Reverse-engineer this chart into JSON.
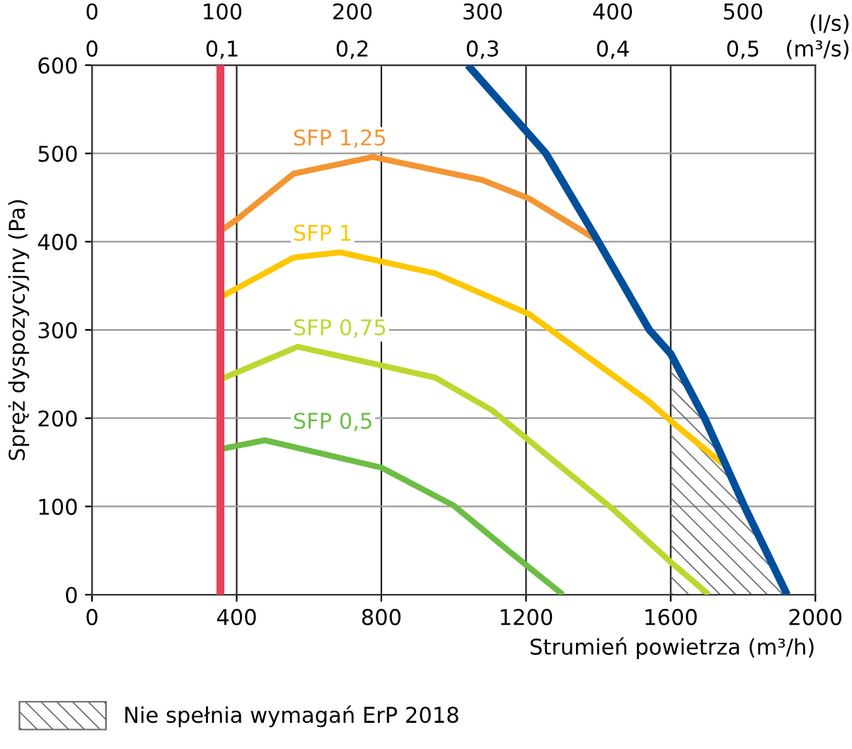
{
  "chart_data": {
    "type": "line",
    "xlabel": "Strumień powietrza (m³/h)",
    "ylabel": "Spręż dyspozycyjny (Pa)",
    "x2label": "(l/s)",
    "annotations": [
      "0",
      "0,1",
      "0,2",
      "0,3",
      "0,4",
      "0,5",
      "(m³/s)"
    ],
    "xlim": [
      0,
      2000
    ],
    "xticks": [
      0,
      400,
      800,
      1200,
      1600,
      2000
    ],
    "ylim": [
      0,
      600
    ],
    "yticks": [
      0,
      100,
      200,
      300,
      400,
      500,
      600
    ],
    "x2lim": [
      0,
      555.6
    ],
    "x2ticks": [
      0,
      100,
      200,
      300,
      400,
      500
    ],
    "grid": true,
    "legend": "bottom left",
    "line_style": "solid",
    "marker": "none",
    "ref_lines": [
      {
        "axis": "x",
        "value": 355,
        "color": "#e8415a"
      }
    ],
    "series": [
      {
        "type": "area",
        "name": "Nie spełnia wymagań ErP 2018",
        "color": "#666666",
        "x": [
          1600,
          1694,
          1804,
          1922
        ],
        "values": [
          273,
          200,
          100,
          0
        ]
      },
      {
        "name": "SFP 1,25",
        "color": "#f39533",
        "x": [
          355,
          400,
          557,
          776,
          1078,
          1208,
          1400
        ],
        "values": [
          412,
          425,
          477,
          496,
          470,
          449,
          401
        ]
      },
      {
        "name": "SFP 1",
        "color": "#fdc600",
        "x": [
          355,
          557,
          686,
          949,
          1208,
          1537,
          1600,
          1745
        ],
        "values": [
          337,
          382,
          388,
          364,
          318,
          220,
          197,
          148
        ]
      },
      {
        "name": "SFP 0,75",
        "color": "#bed630",
        "x": [
          355,
          569,
          949,
          1106,
          1443,
          1600,
          1706
        ],
        "values": [
          244,
          281,
          246,
          209,
          96,
          37,
          0
        ]
      },
      {
        "name": "SFP 0,5",
        "color": "#6cbd45",
        "x": [
          355,
          478,
          800,
          1000,
          1157,
          1302
        ],
        "values": [
          165,
          175,
          144,
          101,
          48,
          0
        ]
      },
      {
        "color": "#004f9a",
        "x": [
          1039,
          1255,
          1400,
          1541,
          1600,
          1694,
          1804,
          1922
        ],
        "values": [
          600,
          500,
          400,
          300,
          273,
          200,
          100,
          0
        ]
      }
    ]
  }
}
